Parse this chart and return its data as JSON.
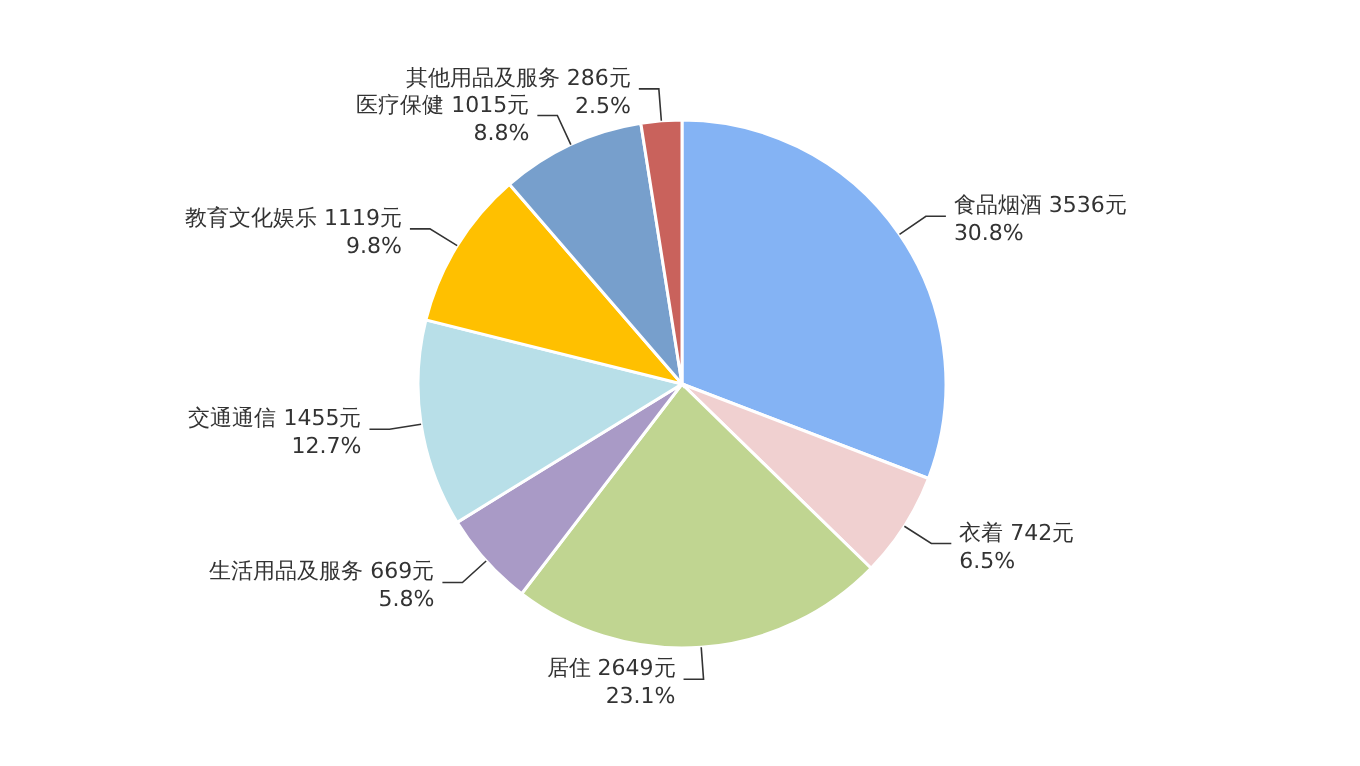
{
  "chart_data": {
    "type": "pie",
    "categories": [
      "食品烟酒",
      "衣着",
      "居住",
      "生活用品及服务",
      "交通通信",
      "教育文化娱乐",
      "医疗保健",
      "其他用品及服务"
    ],
    "values": [
      3536,
      742,
      2649,
      669,
      1455,
      1119,
      1015,
      286
    ],
    "colors": [
      "#84b3f4",
      "#f0d0d0",
      "#c0d591",
      "#a99ac6",
      "#b8dfe8",
      "#ffc000",
      "#779fcc",
      "#c9625c"
    ],
    "value_labels": [
      "3536元\n30.8%",
      "742元\n6.5%",
      "2649元\n23.1%",
      "669元\n5.8%",
      "1455元\n12.7%",
      "1119元\n9.8%",
      "1015元\n8.8%",
      "286元\n2.5%"
    ]
  }
}
